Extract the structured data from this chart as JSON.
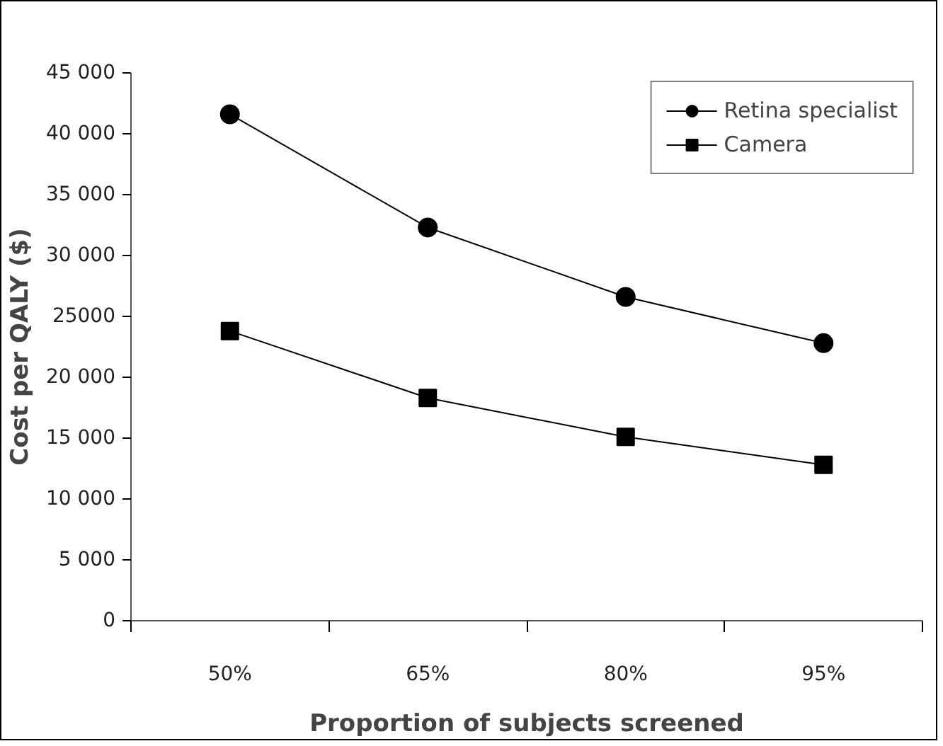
{
  "chart_data": {
    "type": "line",
    "xlabel": "Proportion of subjects screened",
    "ylabel": "Cost per QALY ($)",
    "categories": [
      "50%",
      "65%",
      "80%",
      "95%"
    ],
    "series": [
      {
        "name": "Retina specialist",
        "color": "#000000",
        "marker": "circle",
        "values": [
          41600,
          32300,
          26600,
          22800
        ]
      },
      {
        "name": "Camera",
        "color": "#000000",
        "marker": "square",
        "values": [
          23800,
          18300,
          15100,
          12800
        ]
      }
    ],
    "ylim": [
      0,
      45000
    ],
    "yticks": [
      0,
      {
        "value": 5000,
        "label": "5 000"
      },
      {
        "value": 10000,
        "label": "10 000"
      },
      {
        "value": 15000,
        "label": "15 000"
      },
      {
        "value": 20000,
        "label": "20 000"
      },
      25000,
      {
        "value": 30000,
        "label": "30 000"
      },
      {
        "value": 35000,
        "label": "35 000"
      },
      {
        "value": 40000,
        "label": "40 000"
      },
      {
        "value": 45000,
        "label": "45 000"
      }
    ],
    "grid": false,
    "legend": "top right",
    "line_style": "solid"
  }
}
